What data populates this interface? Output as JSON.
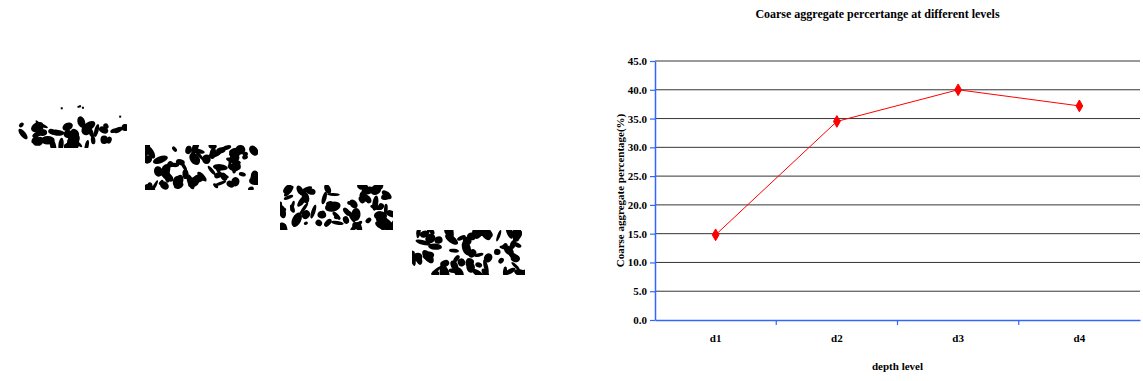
{
  "chart_data": {
    "type": "line",
    "title": "Coarse aggregate percertange at different levels",
    "x_label": "depth level",
    "y_label": "Coarse aggregate percentage(%)",
    "categories": [
      "d1",
      "d2",
      "d3",
      "d4"
    ],
    "values": [
      14.8,
      34.5,
      40.0,
      37.2
    ],
    "color": "#ff0000",
    "marker": "diamond",
    "ylim": [
      0,
      45
    ],
    "yticks": [
      {
        "value": 0,
        "label": "0.0"
      },
      {
        "value": 5,
        "label": "5.0"
      },
      {
        "value": 10,
        "label": "10.0"
      },
      {
        "value": 15,
        "label": "15.0"
      },
      {
        "value": 20,
        "label": "20.0"
      },
      {
        "value": 25,
        "label": "25.0"
      },
      {
        "value": 30,
        "label": "30.0"
      },
      {
        "value": 35,
        "label": "35.0"
      },
      {
        "value": 40,
        "label": "40.0"
      },
      {
        "value": 45,
        "label": "45.0"
      }
    ],
    "grid": true
  }
}
